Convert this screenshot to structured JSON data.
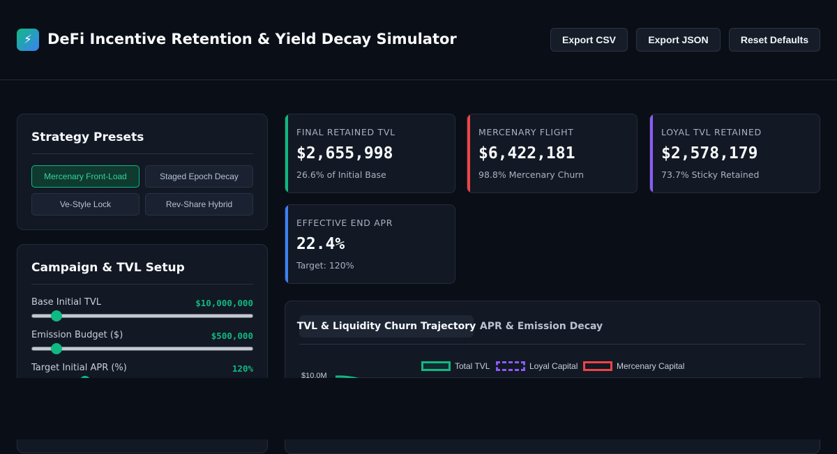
{
  "app": {
    "logo_glyph": "⚡",
    "title": "DeFi Incentive Retention & Yield Decay Simulator"
  },
  "header": {
    "buttons": [
      "Export CSV",
      "Export JSON",
      "Reset Defaults"
    ]
  },
  "presets": {
    "title": "Strategy Presets",
    "items": [
      "Mercenary Front-Load",
      "Staged Epoch Decay",
      "Ve-Style Lock",
      "Rev-Share Hybrid"
    ],
    "active": "Mercenary Front-Load"
  },
  "setup": {
    "title": "Campaign & TVL Setup",
    "sliders": [
      {
        "label": "Base Initial TVL",
        "value": "$10,000,000",
        "fraction": 0.11
      },
      {
        "label": "Emission Budget ($)",
        "value": "$500,000",
        "fraction": 0.11
      },
      {
        "label": "Target Initial APR (%)",
        "value": "120%",
        "fraction": 0.24
      }
    ]
  },
  "metrics": [
    {
      "label": "FINAL RETAINED TVL",
      "value": "$2,655,998",
      "sub": "26.6% of Initial Base",
      "accent": "#10b981"
    },
    {
      "label": "MERCENARY FLIGHT",
      "value": "$6,422,181",
      "sub": "98.8% Mercenary Churn",
      "accent": "#ef4444"
    },
    {
      "label": "LOYAL TVL RETAINED",
      "value": "$2,578,179",
      "sub": "73.7% Sticky Retained",
      "accent": "#8b5cf6"
    },
    {
      "label": "EFFECTIVE END APR",
      "value": "22.4%",
      "sub": "Target: 120%",
      "accent": "#3b82f6"
    }
  ],
  "chart_panel": {
    "tabs": [
      "TVL & Liquidity Churn Trajectory",
      "APR & Emission Decay"
    ],
    "active_tab": "TVL & Liquidity Churn Trajectory"
  },
  "chart_data": {
    "type": "line",
    "legend": [
      "Total TVL",
      "Loyal Capital",
      "Mercenary Capital"
    ],
    "legend_placement": "top-center",
    "series_colors": {
      "Total TVL": "#10b981",
      "Loyal Capital": "#8b5cf6",
      "Mercenary Capital": "#ef4444"
    },
    "y_tick_labels": [
      "$10.0M"
    ]
  },
  "colors": {
    "accent": "#10b981",
    "background": "#0a0e16",
    "panel": "#121824"
  }
}
